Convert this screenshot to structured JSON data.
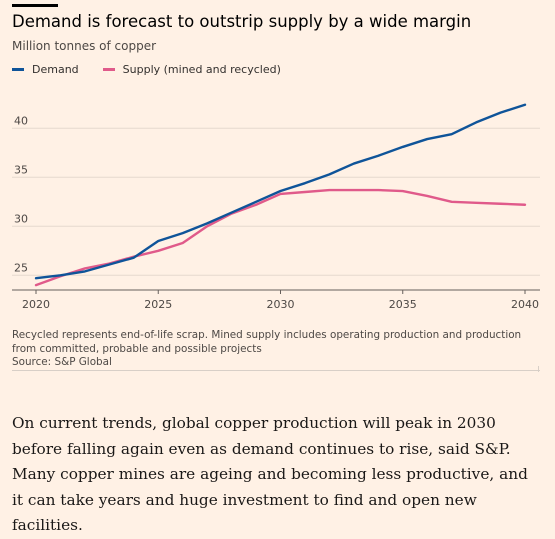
{
  "header": {
    "title": "Demand is forecast to outstrip supply by a wide margin",
    "subtitle": "Million tonnes of copper"
  },
  "legend": {
    "items": [
      {
        "label": "Demand",
        "color": "#0f5499"
      },
      {
        "label": "Supply (mined and recycled)",
        "color": "#e05a8a"
      }
    ]
  },
  "chart_data": {
    "type": "line",
    "x": [
      2020,
      2021,
      2022,
      2023,
      2024,
      2025,
      2026,
      2027,
      2028,
      2029,
      2030,
      2031,
      2032,
      2033,
      2034,
      2035,
      2036,
      2037,
      2038,
      2039,
      2040
    ],
    "series": [
      {
        "name": "Demand",
        "color": "#0f5499",
        "values": [
          24.7,
          25.0,
          25.4,
          26.1,
          26.8,
          28.5,
          29.3,
          30.3,
          31.4,
          32.5,
          33.6,
          34.4,
          35.3,
          36.4,
          37.2,
          38.1,
          38.9,
          39.4,
          40.6,
          41.6,
          42.4
        ]
      },
      {
        "name": "Supply (mined and recycled)",
        "color": "#e05a8a",
        "values": [
          24.0,
          24.9,
          25.7,
          26.2,
          26.9,
          27.5,
          28.3,
          30.0,
          31.3,
          32.2,
          33.3,
          33.5,
          33.7,
          33.7,
          33.7,
          33.6,
          33.1,
          32.5,
          32.4,
          32.3,
          32.2
        ]
      }
    ],
    "xticks": [
      2020,
      2025,
      2030,
      2035,
      2040
    ],
    "yticks": [
      25,
      30,
      35,
      40
    ],
    "xlim": [
      2020,
      2040
    ],
    "ylim": [
      23.5,
      43.5
    ],
    "grid": true,
    "legend_position": "top-left"
  },
  "footnote": "Recycled represents end-of-life scrap. Mined supply includes operating production and production from committed, probable and possible projects",
  "source": "Source: S&P Global",
  "body_text": "On current trends, global copper production will peak in 2030 before falling again even as demand continues to rise, said S&P. Many copper mines are ageing and becoming less productive, and it can take years and huge investment to find and open new facilities."
}
